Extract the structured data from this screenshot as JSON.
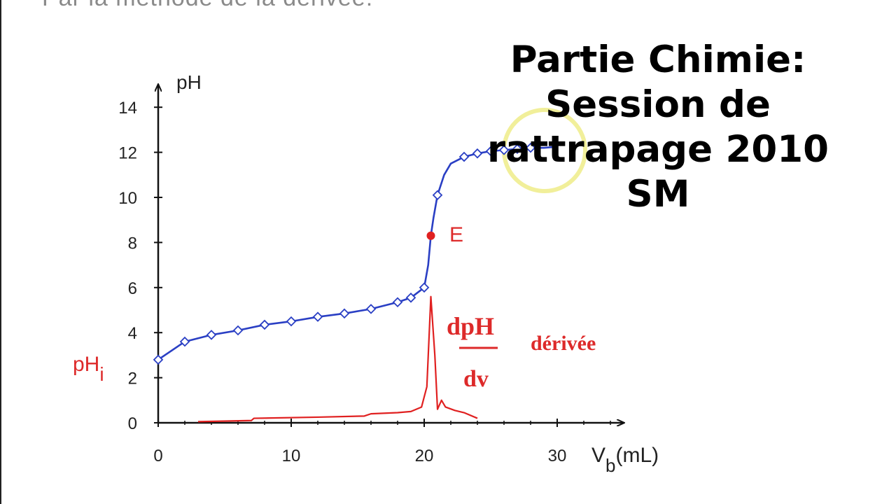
{
  "header": {
    "cut_title": "Par la méthode de la dérivée:"
  },
  "overlay": {
    "lines": [
      "Partie Chimie:",
      "Session de",
      "rattrapage 2010",
      "SM"
    ]
  },
  "colors": {
    "ph_curve": "#2a3fc4",
    "derivative_curve": "#e02020",
    "axis": "#111111",
    "label_red": "#dd2a2a",
    "highlight_circle": "#f1ef9a"
  },
  "chart_data": {
    "type": "line",
    "xlim": [
      0,
      35
    ],
    "ylim": [
      0,
      15
    ],
    "x_ticks": [
      0,
      10,
      20,
      30
    ],
    "y_ticks": [
      0,
      2,
      4,
      6,
      8,
      10,
      12,
      14
    ],
    "y_tick_labels": [
      "0",
      "2",
      "4",
      "6",
      "8",
      "10",
      "12",
      "14"
    ],
    "ylabel": "pH",
    "xlabel_main": "V",
    "xlabel_sub": "b",
    "xlabel_unit": "(mL)",
    "grid": false,
    "ph_i_label": {
      "main": "pH",
      "sub": "i"
    },
    "equivalence": {
      "label": "E",
      "x": 20.5,
      "y": 8.3
    },
    "derivative_label": {
      "numerator": "dpH",
      "denominator": "dv",
      "text": "dérivée"
    },
    "series": [
      {
        "name": "pH",
        "markers": "diamond",
        "x": [
          0,
          2,
          4,
          6,
          8,
          10,
          12,
          14,
          16,
          18,
          19,
          20,
          20.3,
          20.5,
          20.7,
          21,
          21.5,
          22,
          23,
          24,
          25,
          26,
          27,
          28,
          29,
          30
        ],
        "y": [
          2.8,
          3.6,
          3.9,
          4.1,
          4.35,
          4.5,
          4.7,
          4.85,
          5.05,
          5.35,
          5.55,
          6.0,
          7.0,
          8.3,
          9.1,
          10.1,
          11.0,
          11.5,
          11.8,
          11.95,
          12.05,
          12.1,
          12.15,
          12.2,
          12.2,
          12.25
        ],
        "marker_x": [
          0,
          2,
          4,
          6,
          8,
          10,
          12,
          14,
          16,
          18,
          19,
          20,
          21,
          23,
          24,
          25,
          26,
          27,
          28
        ],
        "marker_y": [
          2.8,
          3.6,
          3.9,
          4.1,
          4.35,
          4.5,
          4.7,
          4.85,
          5.05,
          5.35,
          5.55,
          6.0,
          10.1,
          11.8,
          11.95,
          12.05,
          12.1,
          12.15,
          12.2
        ]
      },
      {
        "name": "dérivée",
        "x": [
          3,
          7,
          7.2,
          12,
          15.5,
          16,
          18,
          19,
          19.8,
          20.2,
          20.5,
          20.8,
          21,
          21.3,
          21.6,
          22.3,
          23,
          24
        ],
        "y": [
          0.05,
          0.1,
          0.2,
          0.25,
          0.3,
          0.4,
          0.45,
          0.5,
          0.7,
          1.6,
          5.6,
          3.0,
          0.6,
          1.0,
          0.7,
          0.55,
          0.45,
          0.2
        ]
      }
    ]
  }
}
